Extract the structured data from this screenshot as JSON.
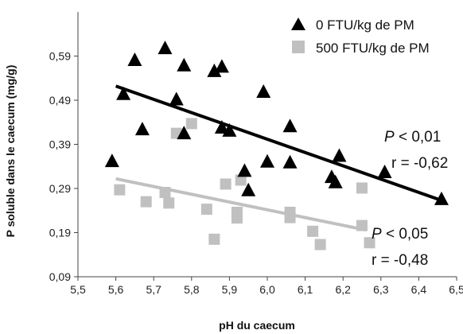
{
  "chart_data": {
    "type": "scatter",
    "xlabel": "pH du caecum",
    "ylabel": "P soluble dans le caecum (mg/g)",
    "xlim": [
      5.5,
      6.5
    ],
    "ylim": [
      0.09,
      0.69
    ],
    "x_ticks": [
      "5,5",
      "5,6",
      "5,7",
      "5,8",
      "5,9",
      "6,0",
      "6,1",
      "6,2",
      "6,3",
      "6,4",
      "6,5"
    ],
    "y_ticks": [
      "0,09",
      "0,19",
      "0,29",
      "0,39",
      "0,49",
      "0,59"
    ],
    "grid": false,
    "legend_position": "top-right",
    "colors": {
      "series0": "#000000",
      "series1": "#c0c0c0"
    },
    "series": [
      {
        "name": "0 FTU/kg de PM",
        "marker": "triangle",
        "points": [
          [
            5.59,
            0.351
          ],
          [
            5.62,
            0.503
          ],
          [
            5.65,
            0.58
          ],
          [
            5.67,
            0.423
          ],
          [
            5.73,
            0.607
          ],
          [
            5.76,
            0.491
          ],
          [
            5.78,
            0.568
          ],
          [
            5.78,
            0.414
          ],
          [
            5.86,
            0.555
          ],
          [
            5.88,
            0.565
          ],
          [
            5.88,
            0.427
          ],
          [
            5.9,
            0.42
          ],
          [
            5.94,
            0.329
          ],
          [
            5.95,
            0.285
          ],
          [
            5.99,
            0.508
          ],
          [
            6.0,
            0.35
          ],
          [
            6.06,
            0.43
          ],
          [
            6.06,
            0.348
          ],
          [
            6.17,
            0.315
          ],
          [
            6.18,
            0.303
          ],
          [
            6.19,
            0.363
          ],
          [
            6.31,
            0.326
          ],
          [
            6.46,
            0.265
          ]
        ],
        "trendline": {
          "x": [
            5.6,
            6.46
          ],
          "y": [
            0.522,
            0.263
          ]
        },
        "annotation": {
          "p_italic": "P",
          "p_rest": " < 0,01",
          "r": "r = -0,62"
        }
      },
      {
        "name": "500 FTU/kg de PM",
        "marker": "square",
        "points": [
          [
            5.61,
            0.287
          ],
          [
            5.68,
            0.26
          ],
          [
            5.73,
            0.281
          ],
          [
            5.74,
            0.257
          ],
          [
            5.76,
            0.415
          ],
          [
            5.8,
            0.437
          ],
          [
            5.84,
            0.243
          ],
          [
            5.86,
            0.175
          ],
          [
            5.89,
            0.3
          ],
          [
            5.92,
            0.223
          ],
          [
            5.92,
            0.236
          ],
          [
            5.93,
            0.309
          ],
          [
            6.06,
            0.236
          ],
          [
            6.06,
            0.224
          ],
          [
            6.12,
            0.193
          ],
          [
            6.14,
            0.163
          ],
          [
            6.25,
            0.291
          ],
          [
            6.25,
            0.206
          ],
          [
            6.27,
            0.167
          ]
        ],
        "trendline": {
          "x": [
            5.6,
            6.26
          ],
          "y": [
            0.312,
            0.196
          ]
        },
        "annotation": {
          "p_italic": "P",
          "p_rest": " < 0,05",
          "r": "r = -0,48"
        }
      }
    ]
  }
}
